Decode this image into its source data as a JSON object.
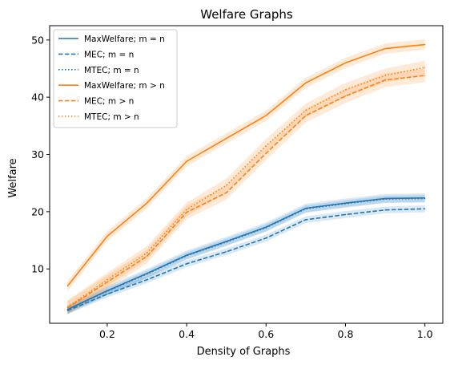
{
  "chart_data": {
    "type": "line",
    "title": "Welfare Graphs",
    "xlabel": "Density of Graphs",
    "ylabel": "Welfare",
    "xlim": [
      0.055,
      1.045
    ],
    "ylim": [
      0.5,
      52.5
    ],
    "xticks": [
      0.2,
      0.4,
      0.6,
      0.8,
      1.0
    ],
    "xtick_labels": [
      "0.2",
      "0.4",
      "0.6",
      "0.8",
      "1.0"
    ],
    "yticks": [
      10,
      20,
      30,
      40,
      50
    ],
    "ytick_labels": [
      "10",
      "20",
      "30",
      "40",
      "50"
    ],
    "grid": false,
    "legend_position": "top-left",
    "x": [
      0.1,
      0.2,
      0.3,
      0.4,
      0.5,
      0.6,
      0.7,
      0.8,
      0.9,
      1.0
    ],
    "series": [
      {
        "name": "MaxWelfare; m = n",
        "color": "#1f77b4",
        "style": "solid",
        "values": [
          2.9,
          6.2,
          9.2,
          12.4,
          14.8,
          17.3,
          20.6,
          21.5,
          22.3,
          22.4
        ],
        "band": 0.8
      },
      {
        "name": "MEC; m = n",
        "color": "#1f77b4",
        "style": "dashed",
        "values": [
          2.7,
          5.6,
          8.1,
          10.9,
          13.0,
          15.4,
          18.6,
          19.5,
          20.3,
          20.5
        ],
        "band": 0.6
      },
      {
        "name": "MTEC; m = n",
        "color": "#1f77b4",
        "style": "dotted",
        "values": [
          2.9,
          6.1,
          9.1,
          12.3,
          14.7,
          17.2,
          20.5,
          21.4,
          22.2,
          22.3
        ],
        "band": 0.6
      },
      {
        "name": "MaxWelfare; m > n",
        "color": "#ff7f0e",
        "style": "solid",
        "values": [
          7.0,
          15.7,
          21.5,
          28.8,
          32.8,
          36.8,
          42.5,
          46.0,
          48.5,
          49.2
        ],
        "band": 0.9
      },
      {
        "name": "MEC; m > n",
        "color": "#ff7f0e",
        "style": "dashed",
        "values": [
          3.2,
          7.7,
          12.2,
          19.9,
          23.3,
          30.2,
          36.8,
          40.2,
          43.0,
          43.8
        ],
        "band": 1.2
      },
      {
        "name": "MTEC; m > n",
        "color": "#ff7f0e",
        "style": "dotted",
        "values": [
          3.3,
          8.1,
          12.8,
          20.4,
          24.6,
          31.5,
          37.7,
          41.3,
          43.8,
          45.2
        ],
        "band": 1.2
      }
    ]
  }
}
